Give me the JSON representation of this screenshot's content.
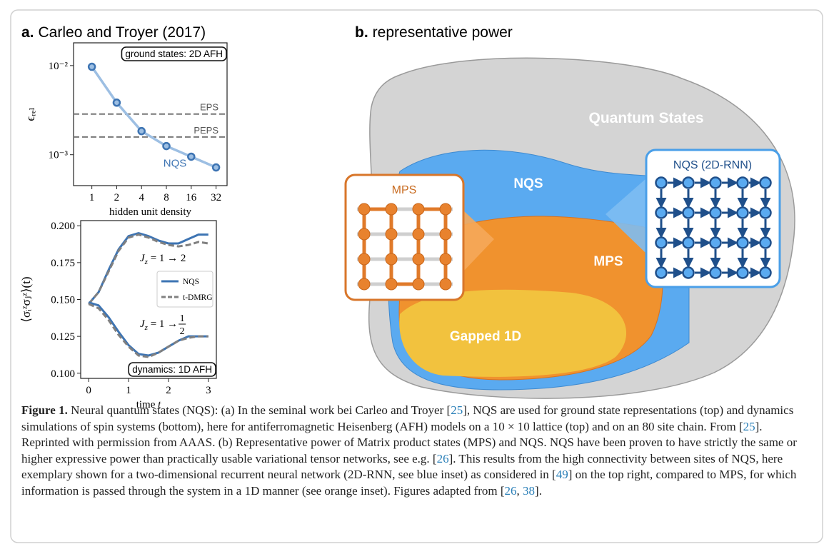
{
  "panel_a": {
    "label": "a.",
    "title": "Carleo and Troyer (2017)"
  },
  "panel_b": {
    "label": "b.",
    "title": "representative power",
    "regions": [
      "Quantum States",
      "NQS",
      "MPS",
      "Gapped 1D"
    ],
    "insets": [
      "MPS",
      "NQS (2D-RNN)"
    ]
  },
  "chart_data": [
    {
      "type": "line",
      "x": [
        1,
        2,
        4,
        8,
        16,
        32
      ],
      "xscale": "log",
      "yscale": "log",
      "xlim": [
        0.6,
        43.5
      ],
      "xticks": [
        1,
        2,
        4,
        8,
        16,
        32
      ],
      "xlabel": "hidden unit density",
      "ylabel": "ϵᵣₑₗ",
      "ylim": [
        0.00045,
        0.018
      ],
      "yticks": [
        {
          "value": 0.01,
          "label": "10⁻²"
        },
        {
          "value": 0.001,
          "label": "10⁻³"
        }
      ],
      "series": [
        {
          "name": "NQS",
          "color": "#9dbfe3",
          "marker_color": "#3d74b3",
          "values": [
            0.0097,
            0.00384,
            0.00184,
            0.00125,
            0.00095,
            0.00072
          ]
        }
      ],
      "reference_lines": [
        {
          "name": "EPS",
          "value": 0.00286
        },
        {
          "name": "PEPS",
          "value": 0.00158
        }
      ],
      "annotation": "ground states: 2D AFH"
    },
    {
      "type": "line",
      "x": [
        0,
        0.25,
        0.5,
        0.75,
        1,
        1.25,
        1.5,
        1.75,
        2,
        2.25,
        2.5,
        2.75,
        3
      ],
      "xlim": [
        -0.2,
        3.2
      ],
      "xticks": [
        0,
        1,
        2,
        3
      ],
      "xlabel": "time",
      "xlabel_var": "t",
      "ylabel": "⟨σᵢᶻσⱼᶻ⟩(t)",
      "ylim": [
        0.0965,
        0.2035
      ],
      "yticks": [
        {
          "value": 0.1,
          "label": "0.100"
        },
        {
          "value": 0.125,
          "label": "0.125"
        },
        {
          "value": 0.15,
          "label": "0.150"
        },
        {
          "value": 0.175,
          "label": "0.175"
        },
        {
          "value": 0.2,
          "label": "0.200"
        }
      ],
      "series": [
        {
          "name": "NQS",
          "color": "#3d74b3",
          "dash": false,
          "values": [
            0.147,
            0.155,
            0.17,
            0.184,
            0.193,
            0.195,
            0.193,
            0.19,
            0.188,
            0.188,
            0.191,
            0.194,
            0.194
          ]
        },
        {
          "name": "t-DMRG",
          "color": "#808080",
          "dash": true,
          "values": [
            0.147,
            0.155,
            0.169,
            0.183,
            0.192,
            0.194,
            0.192,
            0.189,
            0.187,
            0.186,
            0.187,
            0.189,
            0.188
          ]
        },
        {
          "name": "NQS",
          "color": "#3d74b3",
          "dash": false,
          "values": [
            0.148,
            0.146,
            0.138,
            0.128,
            0.119,
            0.113,
            0.112,
            0.114,
            0.118,
            0.122,
            0.125,
            0.125,
            0.125
          ]
        },
        {
          "name": "t-DMRG",
          "color": "#808080",
          "dash": true,
          "values": [
            0.147,
            0.144,
            0.136,
            0.126,
            0.118,
            0.112,
            0.111,
            0.114,
            0.118,
            0.122,
            0.124,
            0.125,
            0.125
          ]
        }
      ],
      "annotations": [
        {
          "var": "J",
          "sub": "z",
          "text": " = 1 → 2"
        },
        {
          "var": "J",
          "sub": "z",
          "text": " = 1 → ",
          "num": "1",
          "den": "2"
        }
      ],
      "annotation_box": "dynamics: 1D AFH"
    }
  ],
  "caption": {
    "label": "Figure 1.",
    "segments": [
      {
        "text": " Neural quantum states (NQS): (a) In the seminal work bei Carleo and Troyer ["
      },
      {
        "cite": 25
      },
      {
        "text": "], NQS are used for ground state representations (top) and dynamics simulations of spin systems (bottom), here for antiferromagnetic Heisenberg (AFH) models on a 10 × 10 lattice (top) and on an 80 site chain. From ["
      },
      {
        "cite": 25
      },
      {
        "text": "]. Reprinted with permission from AAAS. (b) Representative power of Matrix product states (MPS) and NQS. NQS have been proven to have strictly the same or higher expressive power than practically usable variational tensor networks, see e.g. ["
      },
      {
        "cite": 26
      },
      {
        "text": "]. This results from the high connectivity between sites of NQS, here exemplary shown for a two-dimensional recurrent neural network (2D-RNN, see blue inset) as considered in ["
      },
      {
        "cite": 49
      },
      {
        "text": "] on the top right, compared to MPS, for which information is passed through the system in a 1D manner (see orange inset). Figures adapted from ["
      },
      {
        "cite": 26
      },
      {
        "text": ", "
      },
      {
        "cite": 38
      },
      {
        "text": "]."
      }
    ]
  }
}
